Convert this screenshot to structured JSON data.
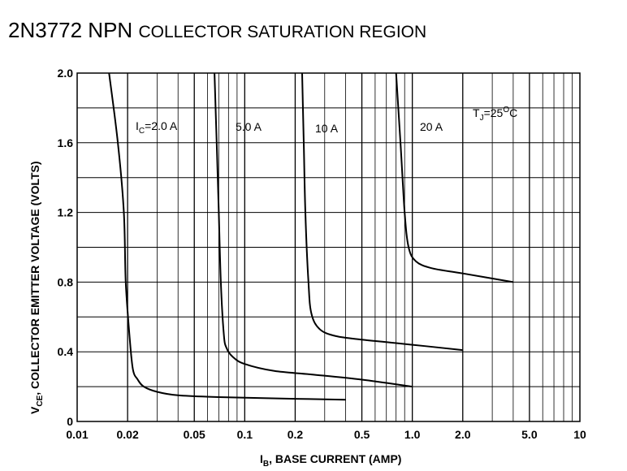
{
  "title": {
    "main": "2N3772 NPN",
    "sub": "COLLECTOR SATURATION REGION"
  },
  "chart_data": {
    "type": "line",
    "title": "2N3772 NPN COLLECTOR SATURATION REGION",
    "xlabel": "I",
    "xlabel_sub": "B",
    "xlabel_rest": ", BASE CURRENT (AMP)",
    "ylabel": "V",
    "ylabel_sub": "CE",
    "ylabel_rest": ", COLLECTOR EMITTER VOLTAGE (VOLTS)",
    "x_scale": "log",
    "xlim": [
      0.01,
      10
    ],
    "ylim": [
      0,
      2.0
    ],
    "x_ticks": [
      0.01,
      0.02,
      0.05,
      0.1,
      0.2,
      0.5,
      1.0,
      2.0,
      5.0,
      10
    ],
    "x_tick_labels": [
      "0.01",
      "0.02",
      "0.05",
      "0.1",
      "0.2",
      "0.5",
      "1.0",
      "2.0",
      "5.0",
      "10"
    ],
    "y_ticks": [
      0,
      0.4,
      0.8,
      1.2,
      1.6,
      2.0
    ],
    "y_tick_labels": [
      "0",
      "0.4",
      "0.8",
      "1.2",
      "1.6",
      "2.0"
    ],
    "grid": true,
    "annotation": {
      "prefix": "T",
      "sub": "J",
      "rest": "=25",
      "sup": "O",
      "suffix": "C"
    },
    "series": [
      {
        "name": "2.0 A",
        "label_prefix": "I",
        "label_sub": "C",
        "label_rest": "=2.0 A",
        "points": [
          [
            0.0155,
            2.0
          ],
          [
            0.0175,
            1.6
          ],
          [
            0.019,
            1.2
          ],
          [
            0.0195,
            0.8
          ],
          [
            0.0205,
            0.5
          ],
          [
            0.0215,
            0.3
          ],
          [
            0.023,
            0.24
          ],
          [
            0.025,
            0.2
          ],
          [
            0.03,
            0.17
          ],
          [
            0.04,
            0.15
          ],
          [
            0.07,
            0.14
          ],
          [
            0.2,
            0.13
          ],
          [
            0.4,
            0.125
          ]
        ]
      },
      {
        "name": "5.0 A",
        "label": "5.0 A",
        "points": [
          [
            0.066,
            2.0
          ],
          [
            0.068,
            1.6
          ],
          [
            0.07,
            1.2
          ],
          [
            0.072,
            0.8
          ],
          [
            0.075,
            0.5
          ],
          [
            0.078,
            0.42
          ],
          [
            0.085,
            0.37
          ],
          [
            0.1,
            0.33
          ],
          [
            0.15,
            0.29
          ],
          [
            0.25,
            0.27
          ],
          [
            0.5,
            0.24
          ],
          [
            1.0,
            0.2
          ]
        ]
      },
      {
        "name": "10 A",
        "label": "10 A",
        "points": [
          [
            0.22,
            2.0
          ],
          [
            0.225,
            1.6
          ],
          [
            0.23,
            1.2
          ],
          [
            0.24,
            0.8
          ],
          [
            0.25,
            0.62
          ],
          [
            0.28,
            0.53
          ],
          [
            0.35,
            0.49
          ],
          [
            0.5,
            0.47
          ],
          [
            0.8,
            0.45
          ],
          [
            2.0,
            0.41
          ]
        ]
      },
      {
        "name": "20 A",
        "label": "20 A",
        "points": [
          [
            0.8,
            2.0
          ],
          [
            0.85,
            1.6
          ],
          [
            0.9,
            1.2
          ],
          [
            0.95,
            1.0
          ],
          [
            1.05,
            0.92
          ],
          [
            1.3,
            0.88
          ],
          [
            2.0,
            0.85
          ],
          [
            4.0,
            0.8
          ]
        ]
      }
    ]
  }
}
